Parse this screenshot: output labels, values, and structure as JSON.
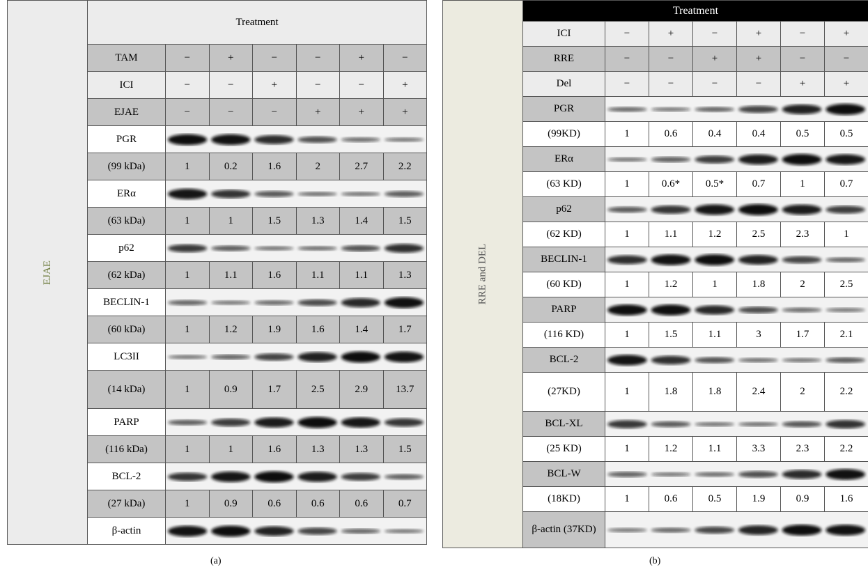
{
  "panels": [
    {
      "side_label": "EJAE",
      "header": "Treatment",
      "caption": "(a)",
      "rows": [
        {
          "label": "TAM",
          "cells": [
            "−",
            "+",
            "−",
            "−",
            "+",
            "−"
          ]
        },
        {
          "label": "ICI",
          "cells": [
            "−",
            "−",
            "+",
            "−",
            "−",
            "+"
          ]
        },
        {
          "label": "EJAE",
          "cells": [
            "−",
            "−",
            "−",
            "+",
            "+",
            "+"
          ]
        },
        {
          "label": "PGR"
        },
        {
          "label": "(99 kDa)",
          "cells": [
            "1",
            "0.2",
            "1.6",
            "2",
            "2.7",
            "2.2"
          ]
        },
        {
          "label": "ERα"
        },
        {
          "label": "(63 kDa)",
          "cells": [
            "1",
            "1",
            "1.5",
            "1.3",
            "1.4",
            "1.5"
          ]
        },
        {
          "label": "p62"
        },
        {
          "label": "(62 kDa)",
          "cells": [
            "1",
            "1.1",
            "1.6",
            "1.1",
            "1.1",
            "1.3"
          ]
        },
        {
          "label": "BECLIN-1"
        },
        {
          "label": "(60 kDa)",
          "cells": [
            "1",
            "1.2",
            "1.9",
            "1.6",
            "1.4",
            "1.7"
          ]
        },
        {
          "label": "LC3II"
        },
        {
          "label": "(14 kDa)",
          "cells": [
            "1",
            "0.9",
            "1.7",
            "2.5",
            "2.9",
            "13.7"
          ]
        },
        {
          "label": "PARP"
        },
        {
          "label": "(116 kDa)",
          "cells": [
            "1",
            "1",
            "1.6",
            "1.3",
            "1.3",
            "1.5"
          ]
        },
        {
          "label": "BCL-2"
        },
        {
          "label": "(27 kDa)",
          "cells": [
            "1",
            "0.9",
            "0.6",
            "0.6",
            "0.6",
            "0.7"
          ]
        },
        {
          "label": "β-actin"
        }
      ]
    },
    {
      "side_label": "RRE and DEL",
      "header": "Treatment",
      "caption": "(b)",
      "rows": [
        {
          "label": "ICI",
          "cells": [
            "−",
            "+",
            "−",
            "+",
            "−",
            "+"
          ]
        },
        {
          "label": "RRE",
          "cells": [
            "−",
            "−",
            "+",
            "+",
            "−",
            "−"
          ]
        },
        {
          "label": "Del",
          "cells": [
            "−",
            "−",
            "−",
            "−",
            "+",
            "+"
          ]
        },
        {
          "label": "PGR"
        },
        {
          "label": "(99KD)",
          "cells": [
            "1",
            "0.6",
            "0.4",
            "0.4",
            "0.5",
            "0.5"
          ]
        },
        {
          "label": "ERα"
        },
        {
          "label": "(63 KD)",
          "cells": [
            "1",
            "0.6*",
            "0.5*",
            "0.7",
            "1",
            "0.7"
          ]
        },
        {
          "label": "p62"
        },
        {
          "label": "(62 KD)",
          "cells": [
            "1",
            "1.1",
            "1.2",
            "2.5",
            "2.3",
            "1"
          ]
        },
        {
          "label": "BECLIN-1"
        },
        {
          "label": "(60 KD)",
          "cells": [
            "1",
            "1.2",
            "1",
            "1.8",
            "2",
            "2.5"
          ]
        },
        {
          "label": "PARP"
        },
        {
          "label": "(116 KD)",
          "cells": [
            "1",
            "1.5",
            "1.1",
            "3",
            "1.7",
            "2.1"
          ]
        },
        {
          "label": "BCL-2"
        },
        {
          "label": "(27KD)",
          "cells": [
            "1",
            "1.8",
            "1.8",
            "2.4",
            "2",
            "2.2"
          ]
        },
        {
          "label": "BCL-XL"
        },
        {
          "label": "(25 KD)",
          "cells": [
            "1",
            "1.2",
            "1.1",
            "3.3",
            "2.3",
            "2.2"
          ]
        },
        {
          "label": "BCL-W"
        },
        {
          "label": "(18KD)",
          "cells": [
            "1",
            "0.6",
            "0.5",
            "1.9",
            "0.9",
            "1.6"
          ]
        },
        {
          "label": "β-actin (37KD)"
        }
      ]
    }
  ]
}
